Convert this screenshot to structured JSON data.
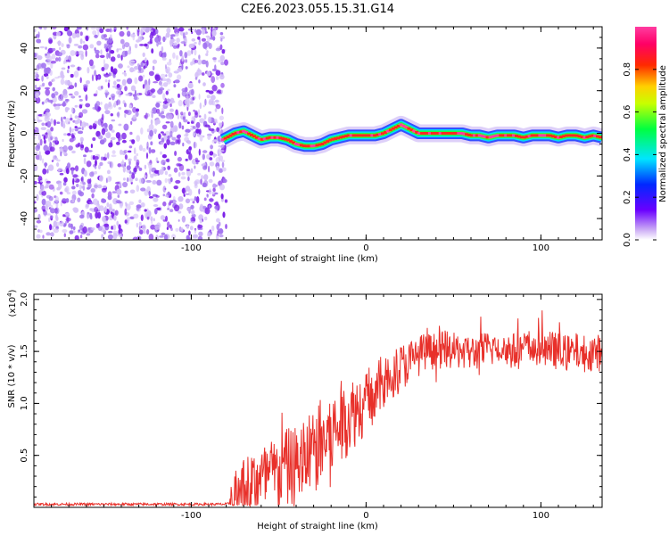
{
  "figure": {
    "title": "C2E6.2023.055.15.31.G14"
  },
  "chart_data": [
    {
      "type": "heatmap",
      "xlabel": "Height of straight line (km)",
      "ylabel": "Frequency (Hz)",
      "xlim": [
        -190,
        135
      ],
      "ylim": [
        -50,
        50
      ],
      "x_ticks": [
        -100,
        0,
        100
      ],
      "y_ticks": [
        -40,
        -20,
        0,
        20,
        40
      ],
      "grid": false,
      "colorbar": {
        "label": "Normalized spectral amplitude",
        "ticks": [
          0.0,
          0.2,
          0.4,
          0.6,
          0.8
        ],
        "range": [
          0,
          1
        ],
        "colormap": "rainbow (violet-blue-cyan-green-yellow-red-magenta)"
      },
      "noise_region": {
        "x": [
          -190,
          -82
        ],
        "color": "#7a1fe8"
      },
      "ridge": {
        "x": [
          -82,
          -75,
          -70,
          -65,
          -60,
          -55,
          -50,
          -45,
          -40,
          -35,
          -30,
          -25,
          -20,
          -15,
          -10,
          -5,
          0,
          5,
          10,
          15,
          20,
          25,
          30,
          35,
          40,
          45,
          50,
          55,
          60,
          65,
          70,
          75,
          80,
          85,
          90,
          95,
          100,
          105,
          110,
          115,
          120,
          125,
          130,
          135
        ],
        "y": [
          -3,
          0,
          1,
          -1,
          -3,
          -2,
          -2,
          -3,
          -5,
          -6,
          -6,
          -5,
          -3,
          -2,
          -1,
          -1,
          -1,
          -1,
          0,
          2,
          4,
          2,
          0,
          0,
          0,
          0,
          0,
          0,
          -1,
          -1,
          -2,
          -1,
          -1,
          -1,
          -2,
          -1,
          -1,
          -1,
          -2,
          -1,
          -1,
          -2,
          -1,
          -2
        ]
      }
    },
    {
      "type": "line",
      "xlabel": "Height of straight line (km)",
      "ylabel": "SNR (10 * v/v)",
      "y_multiplier": "(x10",
      "y_multiplier_exp": "4",
      "y_multiplier_close": ")",
      "xlim": [
        -190,
        135
      ],
      "ylim": [
        0,
        2.05
      ],
      "x_ticks": [
        -100,
        0,
        100
      ],
      "y_ticks": [
        0.5,
        1.0,
        1.5,
        2.0
      ],
      "grid": false,
      "color": "#e8302a",
      "series": [
        {
          "x": [
            -190,
            -150,
            -110,
            -90,
            -80,
            -75,
            -70,
            -65,
            -60,
            -55,
            -50,
            -45,
            -40,
            -35,
            -30,
            -25,
            -20,
            -15,
            -10,
            -5,
            0,
            5,
            10,
            15,
            20,
            25,
            30,
            35,
            40,
            45,
            50,
            55,
            60,
            65,
            70,
            75,
            80,
            85,
            90,
            95,
            100,
            105,
            110,
            115,
            120,
            125,
            130,
            135
          ],
          "values": [
            0.03,
            0.03,
            0.03,
            0.03,
            0.03,
            0.05,
            0.15,
            0.22,
            0.25,
            0.3,
            0.32,
            0.38,
            0.4,
            0.48,
            0.55,
            0.62,
            0.7,
            0.78,
            0.88,
            0.95,
            1.02,
            1.1,
            1.2,
            1.28,
            1.35,
            1.4,
            1.46,
            1.5,
            1.5,
            1.52,
            1.5,
            1.52,
            1.48,
            1.5,
            1.52,
            1.55,
            1.52,
            1.5,
            1.52,
            1.55,
            1.5,
            1.52,
            1.5,
            1.48,
            1.5,
            1.48,
            1.5,
            1.48
          ]
        }
      ]
    }
  ],
  "labels": {
    "top_x_tick_neg100": "-100",
    "top_x_tick_0": "0",
    "top_x_tick_100": "100"
  }
}
